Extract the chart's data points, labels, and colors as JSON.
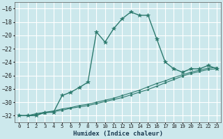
{
  "xlabel": "Humidex (Indice chaleur)",
  "background_color": "#cce8ec",
  "grid_color": "#ffffff",
  "line_color_main": "#2d7a6e",
  "line_color_diag": "#2d7a6e",
  "xlim": [
    -0.5,
    23.5
  ],
  "ylim": [
    -33.0,
    -15.0
  ],
  "yticks": [
    -32,
    -30,
    -28,
    -26,
    -24,
    -22,
    -20,
    -18,
    -16
  ],
  "xticks": [
    0,
    1,
    2,
    3,
    4,
    5,
    6,
    7,
    8,
    9,
    10,
    11,
    12,
    13,
    14,
    15,
    16,
    17,
    18,
    19,
    20,
    21,
    22,
    23
  ],
  "curve_main_x": [
    0,
    1,
    2,
    3,
    4,
    5,
    6,
    7,
    8,
    9,
    10,
    11,
    12,
    13,
    14,
    15,
    16,
    17,
    18,
    19,
    20,
    21,
    22,
    23
  ],
  "curve_main_y": [
    -32,
    -32,
    -32,
    -31.5,
    -31.5,
    -29.0,
    -28.5,
    -27.8,
    -27.0,
    -19.5,
    -21.0,
    -19.0,
    -17.5,
    -16.5,
    -17.0,
    -17.0,
    -20.5,
    -24.0,
    -25.0,
    -25.5,
    -25.0,
    -25.0,
    -24.5,
    -25.0
  ],
  "curve_diag1_x": [
    0,
    1,
    2,
    3,
    4,
    5,
    6,
    7,
    8,
    9,
    10,
    11,
    12,
    13,
    14,
    15,
    16,
    17,
    18,
    19,
    20,
    21,
    22,
    23
  ],
  "curve_diag1_y": [
    -32,
    -32,
    -31.8,
    -31.6,
    -31.4,
    -31.2,
    -30.9,
    -30.7,
    -30.5,
    -30.2,
    -29.9,
    -29.6,
    -29.3,
    -28.9,
    -28.5,
    -28.1,
    -27.6,
    -27.1,
    -26.6,
    -26.1,
    -25.7,
    -25.4,
    -25.1,
    -25.0
  ],
  "curve_diag2_x": [
    0,
    1,
    2,
    3,
    4,
    5,
    6,
    7,
    8,
    9,
    10,
    11,
    12,
    13,
    14,
    15,
    16,
    17,
    18,
    19,
    20,
    21,
    22,
    23
  ],
  "curve_diag2_y": [
    -32,
    -32,
    -31.7,
    -31.5,
    -31.3,
    -31.0,
    -30.8,
    -30.5,
    -30.3,
    -30.0,
    -29.7,
    -29.4,
    -29.0,
    -28.6,
    -28.2,
    -27.7,
    -27.2,
    -26.8,
    -26.3,
    -25.9,
    -25.5,
    -25.2,
    -24.9,
    -24.8
  ]
}
